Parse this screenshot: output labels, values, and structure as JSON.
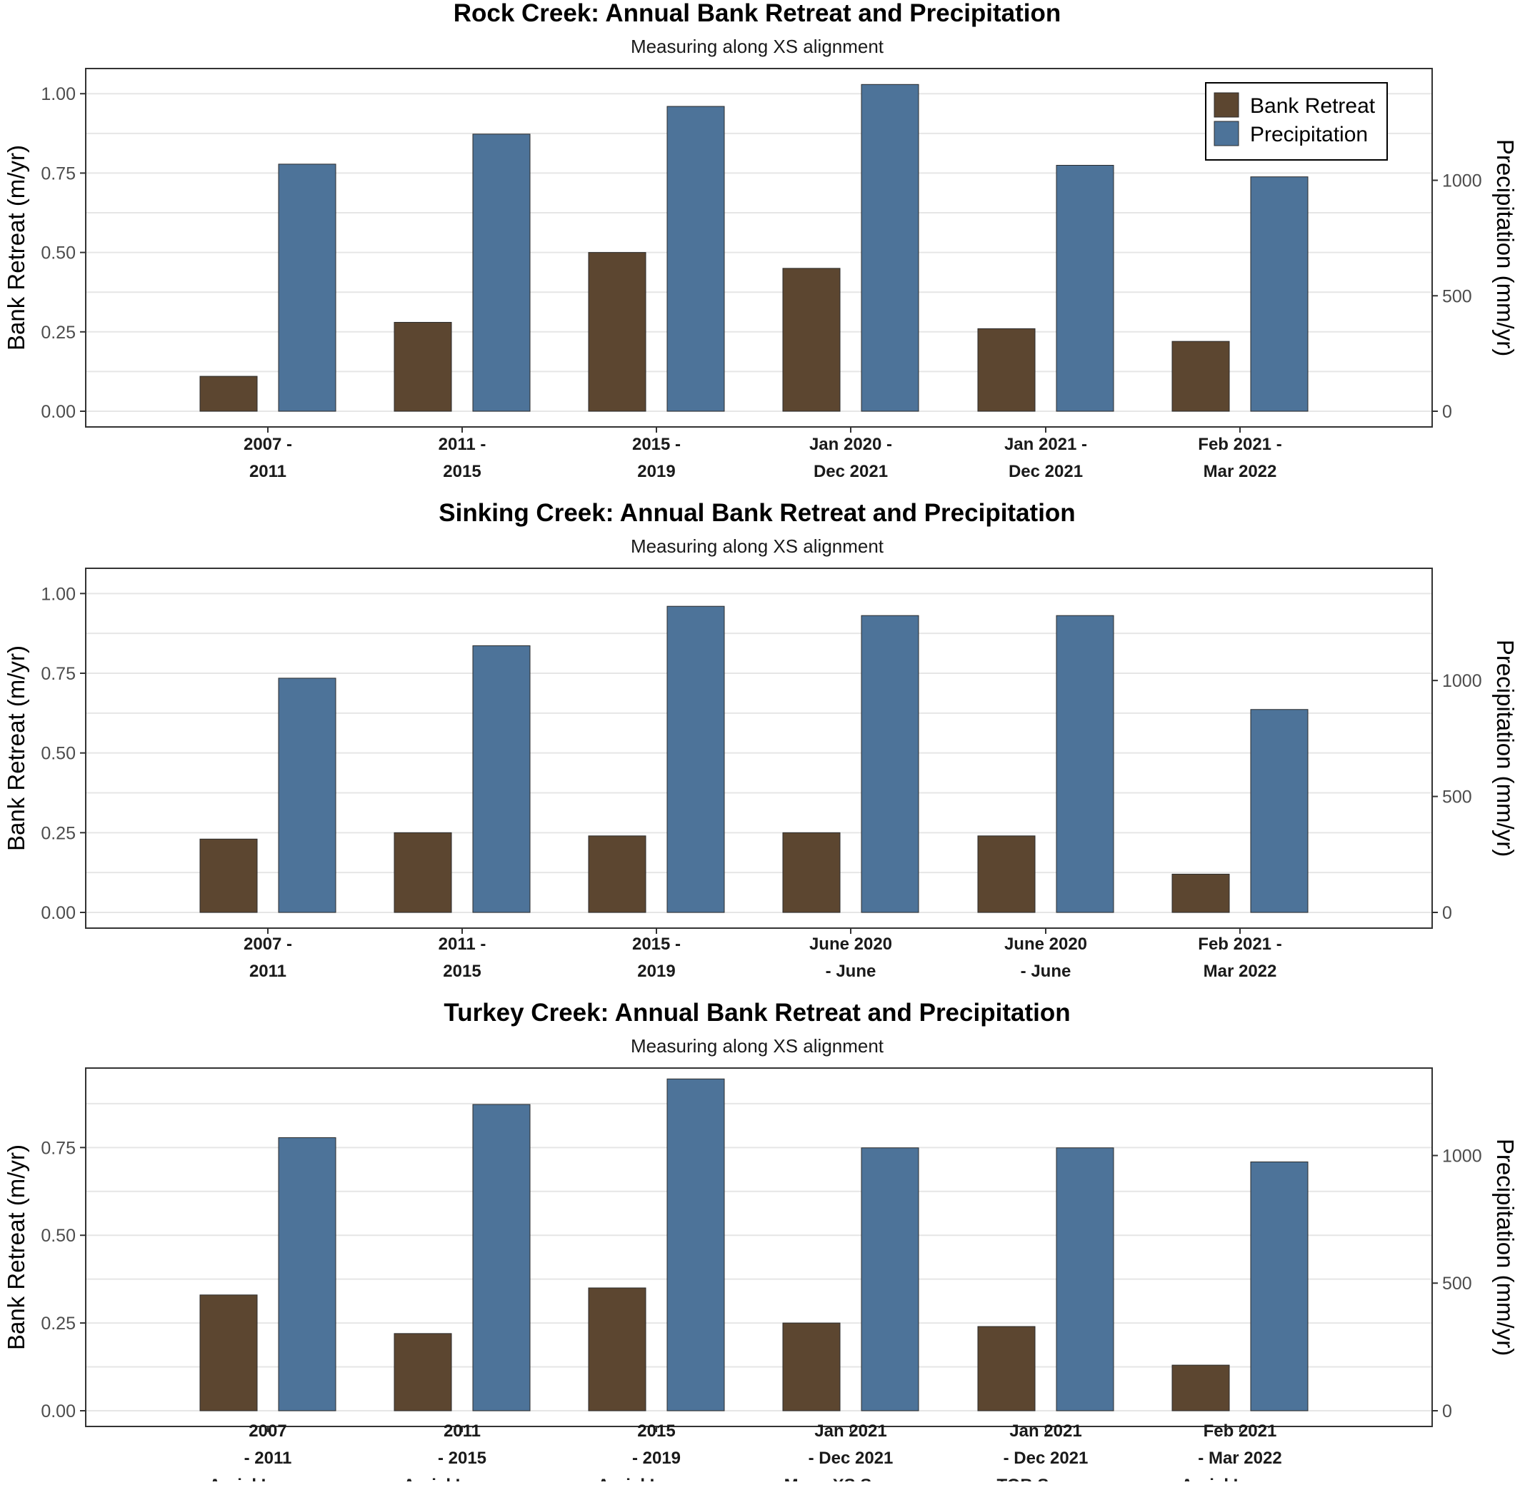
{
  "colors": {
    "bank_retreat": "#5C4630",
    "precipitation": "#4D7399",
    "grid": "#E6E6E6",
    "frame": "#333333"
  },
  "legend": {
    "items": [
      "Bank Retreat",
      "Precipitation"
    ],
    "position": "top-right",
    "panel": 0
  },
  "chart_data": [
    {
      "type": "bar",
      "title": "Rock Creek: Annual Bank Retreat and Precipitation",
      "subtitle": "Measuring along XS alignment",
      "ylabel": "Bank Retreat (m/yr)",
      "y2label": "Precipitation (mm/yr)",
      "ylim": [
        0,
        1.05
      ],
      "yticks": [
        "0.00",
        "0.25",
        "0.50",
        "0.75",
        "1.00"
      ],
      "y2ticks": [
        "0",
        "500",
        "1000"
      ],
      "y2_scale": 1375,
      "grid": true,
      "categories": [
        [
          "2007 -",
          "2011"
        ],
        [
          "2011 -",
          "2015"
        ],
        [
          "2015 -",
          "2019"
        ],
        [
          "Jan 2020 -",
          "Dec 2021"
        ],
        [
          "Jan 2021 -",
          "Dec 2021"
        ],
        [
          "Feb 2021 -",
          "Mar 2022"
        ]
      ],
      "series": [
        {
          "name": "Bank Retreat",
          "values": [
            0.11,
            0.28,
            0.5,
            0.45,
            0.26,
            0.22
          ]
        },
        {
          "name": "Precipitation",
          "values": [
            1070,
            1200,
            1320,
            1415,
            1065,
            1015
          ]
        }
      ]
    },
    {
      "type": "bar",
      "title": "Sinking Creek: Annual Bank Retreat and Precipitation",
      "subtitle": "Measuring along XS alignment",
      "ylabel": "Bank Retreat (m/yr)",
      "y2label": "Precipitation (mm/yr)",
      "ylim": [
        0,
        1.05
      ],
      "yticks": [
        "0.00",
        "0.25",
        "0.50",
        "0.75",
        "1.00"
      ],
      "y2ticks": [
        "0",
        "500",
        "1000"
      ],
      "y2_scale": 1375,
      "grid": true,
      "categories": [
        [
          "2007 -",
          "2011"
        ],
        [
          "2011 -",
          "2015"
        ],
        [
          "2015 -",
          "2019"
        ],
        [
          "June 2020",
          "- June"
        ],
        [
          "June 2020",
          "- June"
        ],
        [
          "Feb 2021 -",
          "Mar 2022"
        ]
      ],
      "series": [
        {
          "name": "Bank Retreat",
          "values": [
            0.23,
            0.25,
            0.24,
            0.25,
            0.24,
            0.12
          ]
        },
        {
          "name": "Precipitation",
          "values": [
            1010,
            1150,
            1320,
            1280,
            1280,
            875
          ]
        }
      ]
    },
    {
      "type": "bar",
      "title": "Turkey Creek: Annual Bank Retreat and Precipitation",
      "subtitle": "Measuring along XS alignment",
      "ylabel": "Bank Retreat (m/yr)",
      "y2label": "Precipitation (mm/yr)",
      "ylim": [
        0,
        0.95
      ],
      "yticks": [
        "0.00",
        "0.25",
        "0.50",
        "0.75"
      ],
      "y2ticks": [
        "0",
        "500",
        "1000"
      ],
      "y2_scale": 1375,
      "grid": true,
      "categories": [
        [
          "2007",
          "- 2011",
          "Aerial Imagery"
        ],
        [
          "2011",
          "- 2015",
          "Aerial Imagery"
        ],
        [
          "2015",
          "- 2019",
          "Aerial Imagery"
        ],
        [
          "Jan 2021",
          "- Dec 2021",
          "Mean XS Survey"
        ],
        [
          "Jan 2021",
          "- Dec 2021",
          "TOB Survey"
        ],
        [
          "Feb 2021",
          "- Mar 2022",
          "Aerial Imagery"
        ]
      ],
      "series": [
        {
          "name": "Bank Retreat",
          "values": [
            0.33,
            0.22,
            0.35,
            0.25,
            0.24,
            0.13
          ]
        },
        {
          "name": "Precipitation",
          "values": [
            1070,
            1200,
            1300,
            1030,
            1030,
            975
          ]
        }
      ]
    }
  ]
}
